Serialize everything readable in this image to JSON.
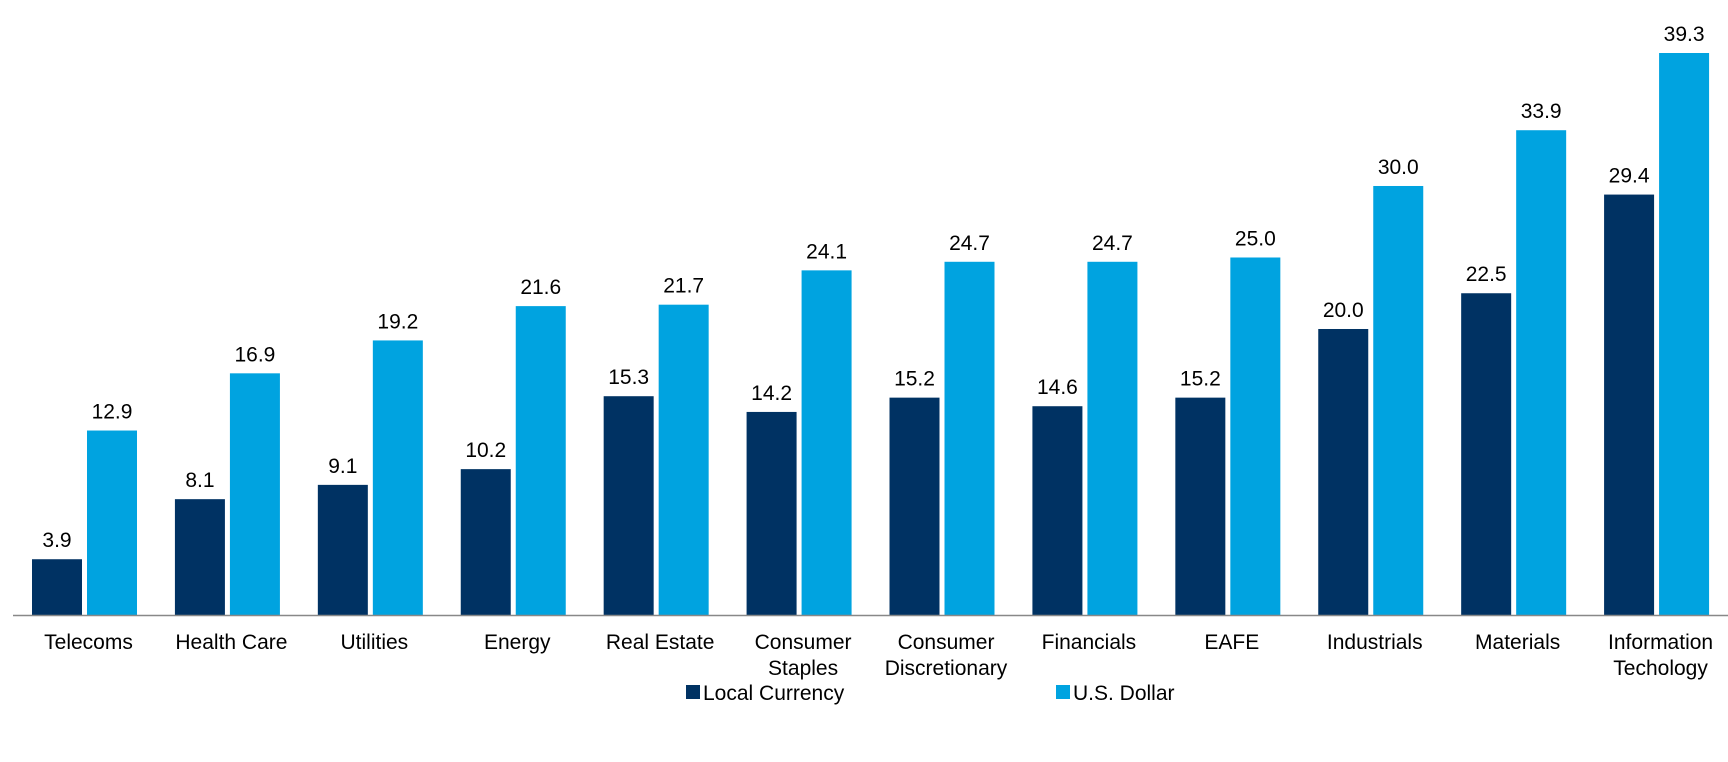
{
  "chart_data": {
    "type": "bar",
    "categories": [
      "Telecoms",
      "Health Care",
      "Utilities",
      "Energy",
      "Real Estate",
      "Consumer\nStaples",
      "Consumer\nDiscretionary",
      "Financials",
      "EAFE",
      "Industrials",
      "Materials",
      "Information\nTechology"
    ],
    "series": [
      {
        "name": "Local Currency",
        "color": "#003263",
        "values": [
          3.9,
          8.1,
          9.1,
          10.2,
          15.3,
          14.2,
          15.2,
          14.6,
          15.2,
          20.0,
          22.5,
          29.4
        ],
        "value_labels": [
          "3.9",
          "8.1",
          "9.1",
          "10.2",
          "15.3",
          "14.2",
          "15.2",
          "14.6",
          "15.2",
          "20.0",
          "22.5",
          "29.4"
        ]
      },
      {
        "name": "U.S. Dollar",
        "color": "#00a3e0",
        "values": [
          12.9,
          16.9,
          19.2,
          21.6,
          21.7,
          24.1,
          24.7,
          24.7,
          25.0,
          30.0,
          33.9,
          39.3
        ],
        "value_labels": [
          "12.9",
          "16.9",
          "19.2",
          "21.6",
          "21.7",
          "24.1",
          "24.7",
          "24.7",
          "25.0",
          "30.0",
          "33.9",
          "39.3"
        ]
      }
    ],
    "legend": "bottom"
  }
}
